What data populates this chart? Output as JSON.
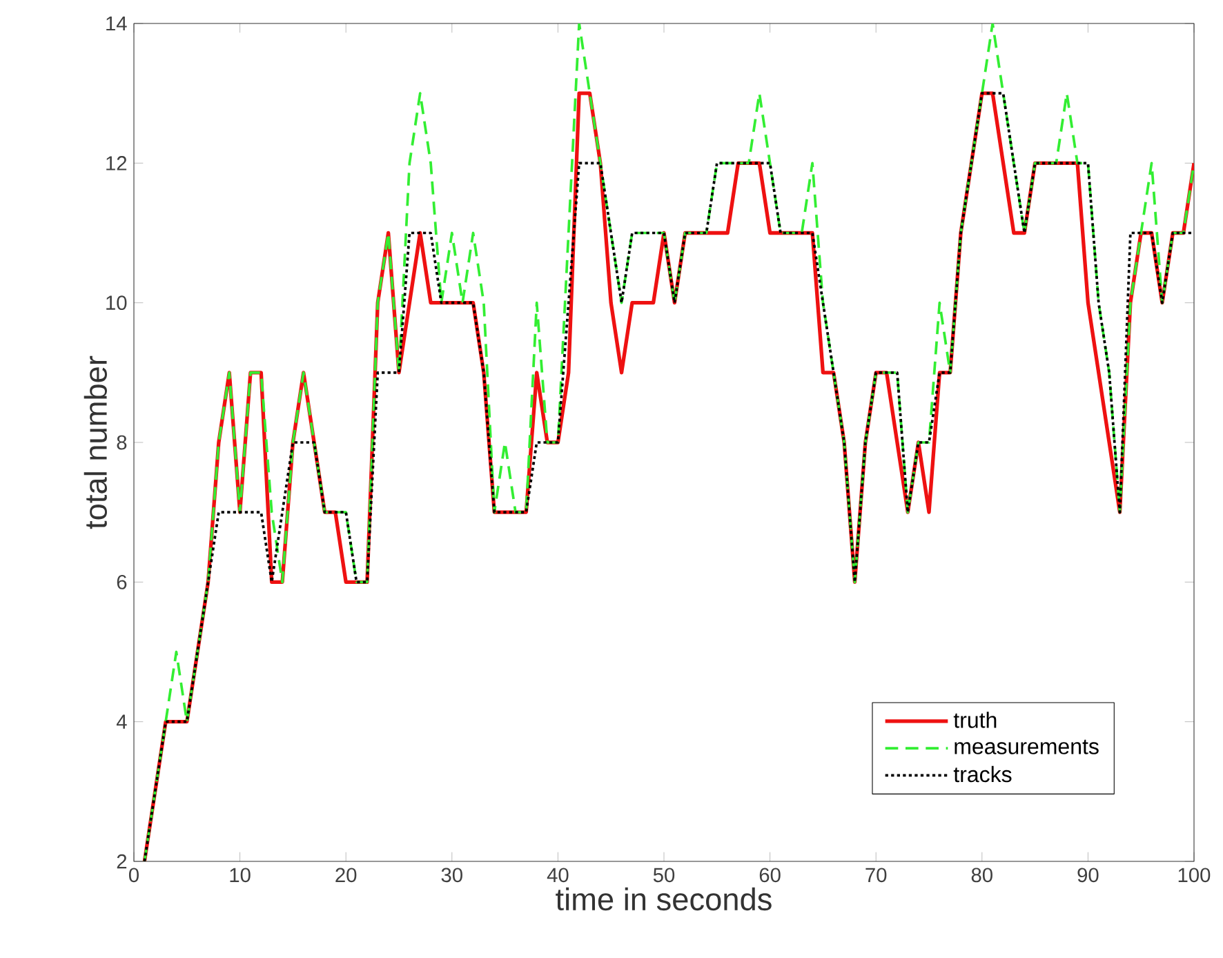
{
  "chart_data": {
    "type": "line",
    "xlabel": "time in seconds",
    "ylabel": "total number",
    "x": [
      1,
      2,
      3,
      4,
      5,
      6,
      7,
      8,
      9,
      10,
      11,
      12,
      13,
      14,
      15,
      16,
      17,
      18,
      19,
      20,
      21,
      22,
      23,
      24,
      25,
      26,
      27,
      28,
      29,
      30,
      31,
      32,
      33,
      34,
      35,
      36,
      37,
      38,
      39,
      40,
      41,
      42,
      43,
      44,
      45,
      46,
      47,
      48,
      49,
      50,
      51,
      52,
      53,
      54,
      55,
      56,
      57,
      58,
      59,
      60,
      61,
      62,
      63,
      64,
      65,
      66,
      67,
      68,
      69,
      70,
      71,
      72,
      73,
      74,
      75,
      76,
      77,
      78,
      79,
      80,
      81,
      82,
      83,
      84,
      85,
      86,
      87,
      88,
      89,
      90,
      91,
      92,
      93,
      94,
      95,
      96,
      97,
      98,
      99,
      100
    ],
    "xlim": [
      0,
      100
    ],
    "ylim": [
      2,
      14
    ],
    "xticks": [
      0,
      10,
      20,
      30,
      40,
      50,
      60,
      70,
      80,
      90,
      100
    ],
    "yticks": [
      2,
      4,
      6,
      8,
      10,
      12,
      14
    ],
    "legend": "bottom right",
    "series": [
      {
        "name": "truth",
        "color": "#ee1111",
        "line_style": "solid",
        "values": [
          2,
          3,
          4,
          4,
          4,
          5,
          6,
          8,
          9,
          7,
          9,
          9,
          6,
          6,
          8,
          9,
          8,
          7,
          7,
          6,
          6,
          6,
          10,
          11,
          9,
          10,
          11,
          10,
          10,
          10,
          10,
          10,
          9,
          7,
          7,
          7,
          7,
          9,
          8,
          8,
          9,
          13,
          13,
          12,
          10,
          9,
          10,
          10,
          10,
          11,
          10,
          11,
          11,
          11,
          11,
          11,
          12,
          12,
          12,
          11,
          11,
          11,
          11,
          11,
          9,
          9,
          8,
          6,
          8,
          9,
          9,
          8,
          7,
          8,
          7,
          9,
          9,
          11,
          12,
          13,
          13,
          12,
          11,
          11,
          12,
          12,
          12,
          12,
          12,
          10,
          9,
          8,
          7,
          10,
          11,
          11,
          10,
          11,
          11,
          12
        ]
      },
      {
        "name": "measurements",
        "color": "#33ee33",
        "line_style": "dashed",
        "values": [
          2,
          3,
          4,
          5,
          4,
          5,
          6,
          8,
          9,
          7,
          9,
          9,
          7,
          6,
          8,
          9,
          8,
          7,
          7,
          7,
          6,
          6,
          10,
          11,
          9,
          12,
          13,
          12,
          10,
          11,
          10,
          11,
          10,
          7,
          8,
          7,
          7,
          10,
          8,
          8,
          11,
          14,
          13,
          12,
          11,
          10,
          11,
          11,
          11,
          11,
          10,
          11,
          11,
          11,
          12,
          12,
          12,
          12,
          13,
          12,
          11,
          11,
          11,
          12,
          10,
          9,
          8,
          6,
          8,
          9,
          9,
          9,
          7,
          8,
          8,
          10,
          9,
          11,
          12,
          13,
          14,
          13,
          12,
          11,
          12,
          12,
          12,
          13,
          12,
          12,
          10,
          9,
          7,
          10,
          11,
          12,
          10,
          11,
          11,
          12
        ]
      },
      {
        "name": "tracks",
        "color": "#000000",
        "line_style": "dotted",
        "values": [
          2,
          3,
          4,
          4,
          4,
          5,
          6,
          7,
          7,
          7,
          7,
          7,
          6,
          7,
          8,
          8,
          8,
          7,
          7,
          7,
          6,
          6,
          9,
          9,
          9,
          11,
          11,
          11,
          10,
          10,
          10,
          10,
          9,
          7,
          7,
          7,
          7,
          8,
          8,
          8,
          10,
          12,
          12,
          12,
          11,
          10,
          11,
          11,
          11,
          11,
          10,
          11,
          11,
          11,
          12,
          12,
          12,
          12,
          12,
          12,
          11,
          11,
          11,
          11,
          10,
          9,
          8,
          6,
          8,
          9,
          9,
          9,
          7,
          8,
          8,
          9,
          9,
          11,
          12,
          13,
          13,
          13,
          12,
          11,
          12,
          12,
          12,
          12,
          12,
          12,
          10,
          9,
          7,
          11,
          11,
          11,
          10,
          11,
          11,
          11
        ]
      }
    ]
  }
}
